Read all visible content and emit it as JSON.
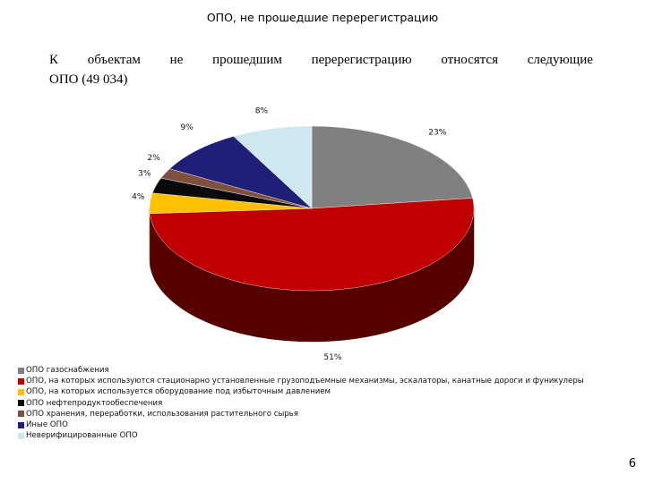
{
  "slide": {
    "title": "ОПО, не прошедшие перерегистрацию",
    "intro_words": [
      "К",
      "объектам",
      "не",
      "прошедшим",
      "перерегистрацию",
      "относятся",
      "следующие"
    ],
    "intro_line2": "ОПО (49 034)",
    "page_number": "6"
  },
  "chart_data": {
    "type": "pie",
    "title": "ОПО, не прошедшие перерегистрацию",
    "slices": [
      {
        "name": "ОПО газоснабжения",
        "value": 23,
        "label": "23%",
        "color": "#808080"
      },
      {
        "name": "ОПО, на которых используются стационарно установленные грузоподъемные механизмы, эскалаторы, канатные дороги и фуникулеры",
        "value": 51,
        "label": "51%",
        "color": "#c00000"
      },
      {
        "name": "ОПО, на которых используется оборудование под избыточным давлением",
        "value": 4,
        "label": "4%",
        "color": "#ffc000"
      },
      {
        "name": "ОПО нефтепродуктообеспечения",
        "value": 3,
        "label": "3%",
        "color": "#0a0a0a"
      },
      {
        "name": "ОПО хранения, переработки, использования растительного сырья",
        "value": 2,
        "label": "2%",
        "color": "#7f4f40"
      },
      {
        "name": "Иные ОПО",
        "value": 9,
        "label": "9%",
        "color": "#1f1f78"
      },
      {
        "name": "Неверифицированные ОПО",
        "value": 8,
        "label": "8%",
        "color": "#cfe7ee"
      }
    ],
    "legend_position": "bottom-left"
  }
}
